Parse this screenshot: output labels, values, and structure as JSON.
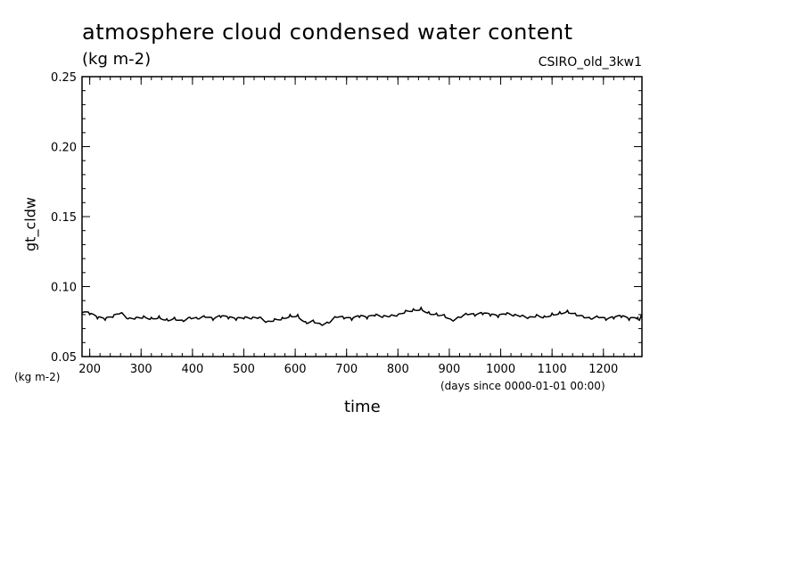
{
  "chart_data": {
    "type": "line",
    "title": "atmosphere cloud condensed water content",
    "subtitle": "(kg m-2)",
    "model_label": "CSIRO_old_3kw1",
    "ylabel": "gt_cldw",
    "yunit": "(kg m-2)",
    "xlabel": "time",
    "xunit": "(days since 0000-01-01 00:00)",
    "xlim": [
      185,
      1275
    ],
    "ylim": [
      0.05,
      0.25
    ],
    "xticks": [
      200,
      300,
      400,
      500,
      600,
      700,
      800,
      900,
      1000,
      1100,
      1200
    ],
    "xtick_labels": [
      "200",
      "300",
      "400",
      "500",
      "600",
      "700",
      "800",
      "900",
      "1000",
      "1100",
      "1200"
    ],
    "yticks": [
      0.05,
      0.1,
      0.15,
      0.2,
      0.25
    ],
    "ytick_labels": [
      "0.05",
      "0.10",
      "0.15",
      "0.20",
      "0.25"
    ],
    "grid": false,
    "series": [
      {
        "x": [
          185,
          200,
          215,
          230,
          245,
          260,
          275,
          290,
          305,
          320,
          335,
          350,
          365,
          380,
          395,
          410,
          425,
          440,
          455,
          470,
          485,
          500,
          515,
          530,
          545,
          560,
          575,
          590,
          605,
          620,
          635,
          650,
          665,
          680,
          695,
          710,
          725,
          740,
          755,
          770,
          785,
          800,
          815,
          830,
          845,
          860,
          875,
          890,
          905,
          920,
          935,
          950,
          965,
          980,
          995,
          1010,
          1025,
          1040,
          1055,
          1070,
          1085,
          1100,
          1115,
          1130,
          1145,
          1160,
          1175,
          1190,
          1205,
          1220,
          1235,
          1250,
          1265,
          1275
        ],
        "y": [
          0.081,
          0.08,
          0.077,
          0.076,
          0.078,
          0.081,
          0.077,
          0.078,
          0.079,
          0.078,
          0.079,
          0.077,
          0.078,
          0.076,
          0.078,
          0.077,
          0.078,
          0.076,
          0.078,
          0.077,
          0.076,
          0.077,
          0.077,
          0.078,
          0.075,
          0.077,
          0.078,
          0.08,
          0.08,
          0.075,
          0.076,
          0.073,
          0.074,
          0.078,
          0.077,
          0.076,
          0.078,
          0.077,
          0.079,
          0.078,
          0.079,
          0.08,
          0.083,
          0.084,
          0.085,
          0.082,
          0.081,
          0.08,
          0.076,
          0.078,
          0.08,
          0.079,
          0.08,
          0.079,
          0.078,
          0.08,
          0.079,
          0.079,
          0.078,
          0.08,
          0.079,
          0.081,
          0.082,
          0.083,
          0.081,
          0.079,
          0.077,
          0.078,
          0.076,
          0.077,
          0.078,
          0.076,
          0.077,
          0.078
        ]
      }
    ]
  }
}
